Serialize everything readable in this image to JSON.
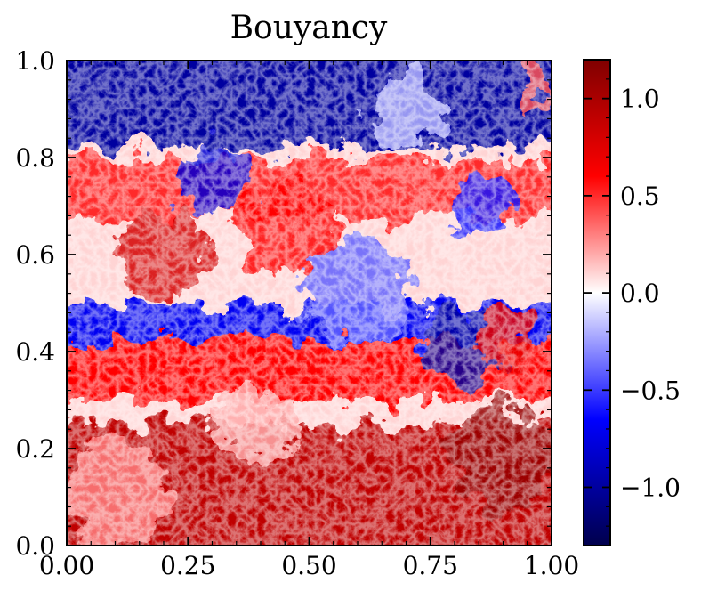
{
  "chart_data": {
    "type": "heatmap",
    "title": "Bouyancy",
    "xlabel": "",
    "ylabel": "",
    "xlim": [
      0.0,
      1.0
    ],
    "ylim": [
      0.0,
      1.0
    ],
    "xticks": [
      0.0,
      0.25,
      0.5,
      0.75,
      1.0
    ],
    "xtick_labels": [
      "0.00",
      "0.25",
      "0.50",
      "0.75",
      "1.00"
    ],
    "yticks": [
      0.0,
      0.2,
      0.4,
      0.6,
      0.8,
      1.0
    ],
    "ytick_labels": [
      "0.0",
      "0.2",
      "0.4",
      "0.6",
      "0.8",
      "1.0"
    ],
    "colormap": "seismic",
    "colorbar": {
      "vmin": -1.3,
      "vmax": 1.2,
      "ticks": [
        -1.0,
        -0.5,
        0.0,
        0.5,
        1.0
      ],
      "tick_labels": [
        "−1.0",
        "−0.5",
        "0.0",
        "0.5",
        "1.0"
      ],
      "position": "right"
    },
    "field_regions": [
      {
        "y_range": [
          0.82,
          1.0
        ],
        "mean_value": -1.0
      },
      {
        "y_range": [
          0.68,
          0.8
        ],
        "mean_value": 0.5
      },
      {
        "y_range": [
          0.42,
          0.5
        ],
        "mean_value": -0.7
      },
      {
        "y_range": [
          0.3,
          0.42
        ],
        "mean_value": 0.6
      },
      {
        "y_range": [
          0.0,
          0.25
        ],
        "mean_value": 0.9
      }
    ],
    "grid": false
  }
}
